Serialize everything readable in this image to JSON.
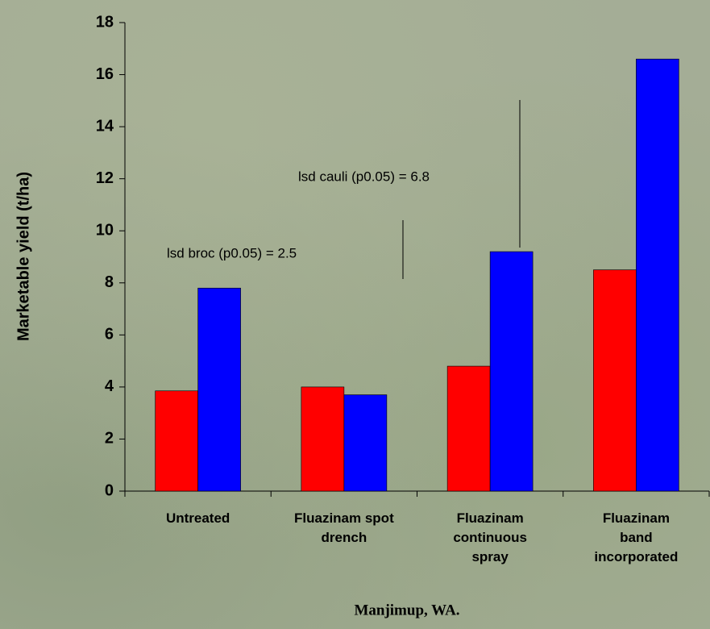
{
  "chart_data": {
    "type": "bar",
    "y_label": "Marketable yield (t/ha)",
    "x_label": "Manjimup, WA.",
    "categories": [
      "Untreated",
      "Fluazinam spot\ndrench",
      "Fluazinam\ncontinuous\nspray",
      "Fluazinam\nband\nincorporated"
    ],
    "series": [
      {
        "color": "#ff0000",
        "values": [
          3.85,
          4.0,
          4.8,
          8.5
        ]
      },
      {
        "color": "#0000ff",
        "values": [
          7.8,
          3.7,
          9.2,
          16.6
        ]
      }
    ],
    "annotations": [
      "lsd broc (p0.05) = 2.5",
      "lsd cauli (p0.05) = 6.8"
    ],
    "ylim": [
      0,
      18
    ],
    "yticks": [
      0,
      2,
      4,
      6,
      8,
      10,
      12,
      14,
      16,
      18
    ]
  }
}
